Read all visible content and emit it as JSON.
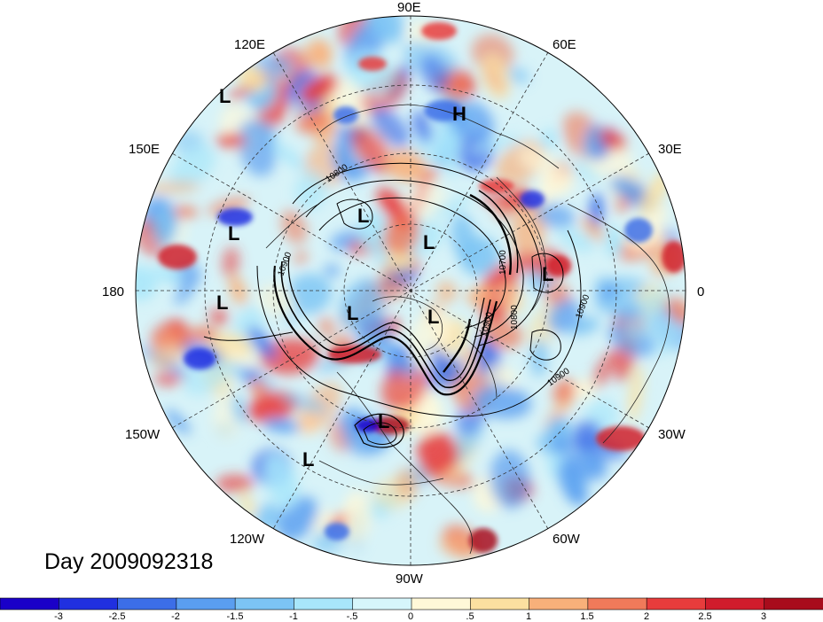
{
  "title": "Day 2009092318",
  "longitude_labels": [
    "90E",
    "60E",
    "30E",
    "0",
    "30W",
    "60W",
    "90W",
    "120W",
    "150W",
    "180",
    "150E",
    "120E"
  ],
  "contour_labels": [
    "10800",
    "10900",
    "10900",
    "10800",
    "10700",
    "10900",
    "10900"
  ],
  "pressure_centers": [
    {
      "label": "L"
    },
    {
      "label": "L"
    },
    {
      "label": "L"
    },
    {
      "label": "L"
    },
    {
      "label": "L"
    },
    {
      "label": "L"
    },
    {
      "label": "L"
    },
    {
      "label": "L"
    },
    {
      "label": "L"
    },
    {
      "label": "H"
    },
    {
      "label": "L"
    }
  ],
  "colorbar": {
    "ticks": [
      "-3",
      "-2.5",
      "-2",
      "-1.5",
      "-1",
      "-.5",
      "0",
      ".5",
      "1",
      "1.5",
      "2",
      "2.5",
      "3"
    ],
    "colors": [
      "#1a00c8",
      "#2030e0",
      "#3c6ee8",
      "#5a9ef0",
      "#7cc4f4",
      "#a8e6fa",
      "#d6f6fb",
      "#fff8d8",
      "#fce0a0",
      "#f8b07a",
      "#f07a5a",
      "#e83c3c",
      "#d01c2c",
      "#a80c1c"
    ]
  }
}
